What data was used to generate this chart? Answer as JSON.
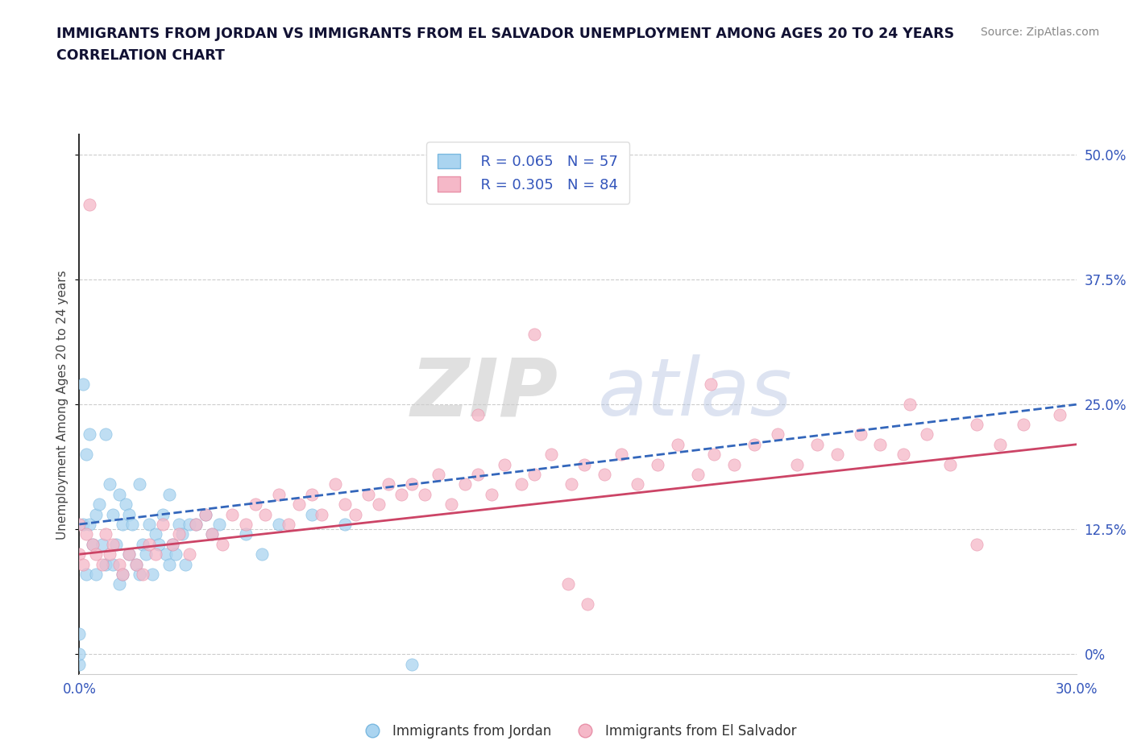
{
  "title_line1": "IMMIGRANTS FROM JORDAN VS IMMIGRANTS FROM EL SALVADOR UNEMPLOYMENT AMONG AGES 20 TO 24 YEARS",
  "title_line2": "CORRELATION CHART",
  "source_text": "Source: ZipAtlas.com",
  "ylabel": "Unemployment Among Ages 20 to 24 years",
  "xlim": [
    0.0,
    0.3
  ],
  "ylim": [
    -0.02,
    0.52
  ],
  "ytick_positions": [
    0.0,
    0.125,
    0.25,
    0.375,
    0.5
  ],
  "ytick_labels": [
    "0%",
    "12.5%",
    "25.0%",
    "37.5%",
    "50.0%"
  ],
  "xtick_positions": [
    0.0,
    0.3
  ],
  "xtick_labels": [
    "0.0%",
    "30.0%"
  ],
  "jordan_color_fill": "#aad4f0",
  "jordan_color_edge": "#7ab8e0",
  "salvador_color_fill": "#f5b8c8",
  "salvador_color_edge": "#e890a8",
  "jordan_line_color": "#3366bb",
  "salvador_line_color": "#cc4466",
  "jordan_R": 0.065,
  "jordan_N": 57,
  "salvador_R": 0.305,
  "salvador_N": 84,
  "legend_label_jordan": "Immigrants from Jordan",
  "legend_label_salvador": "Immigrants from El Salvador",
  "watermark_text1": "ZIP",
  "watermark_text2": "atlas",
  "background_color": "#ffffff",
  "grid_color": "#cccccc",
  "title_color": "#111133",
  "tick_label_color": "#3355bb",
  "jordan_scatter_x": [
    0.0,
    0.0,
    0.0,
    0.001,
    0.001,
    0.002,
    0.002,
    0.003,
    0.003,
    0.004,
    0.005,
    0.005,
    0.006,
    0.007,
    0.008,
    0.008,
    0.009,
    0.01,
    0.01,
    0.011,
    0.012,
    0.012,
    0.013,
    0.013,
    0.014,
    0.015,
    0.015,
    0.016,
    0.017,
    0.018,
    0.018,
    0.019,
    0.02,
    0.021,
    0.022,
    0.023,
    0.024,
    0.025,
    0.026,
    0.027,
    0.027,
    0.028,
    0.029,
    0.03,
    0.031,
    0.032,
    0.033,
    0.035,
    0.038,
    0.04,
    0.042,
    0.05,
    0.055,
    0.06,
    0.07,
    0.08,
    0.1
  ],
  "jordan_scatter_y": [
    -0.01,
    0.0,
    0.02,
    0.27,
    0.13,
    0.2,
    0.08,
    0.13,
    0.22,
    0.11,
    0.14,
    0.08,
    0.15,
    0.11,
    0.22,
    0.09,
    0.17,
    0.14,
    0.09,
    0.11,
    0.16,
    0.07,
    0.13,
    0.08,
    0.15,
    0.14,
    0.1,
    0.13,
    0.09,
    0.17,
    0.08,
    0.11,
    0.1,
    0.13,
    0.08,
    0.12,
    0.11,
    0.14,
    0.1,
    0.16,
    0.09,
    0.11,
    0.1,
    0.13,
    0.12,
    0.09,
    0.13,
    0.13,
    0.14,
    0.12,
    0.13,
    0.12,
    0.1,
    0.13,
    0.14,
    0.13,
    -0.01
  ],
  "salvador_scatter_x": [
    0.0,
    0.0,
    0.001,
    0.002,
    0.003,
    0.004,
    0.005,
    0.007,
    0.008,
    0.009,
    0.01,
    0.012,
    0.013,
    0.015,
    0.017,
    0.019,
    0.021,
    0.023,
    0.025,
    0.028,
    0.03,
    0.033,
    0.035,
    0.038,
    0.04,
    0.043,
    0.046,
    0.05,
    0.053,
    0.056,
    0.06,
    0.063,
    0.066,
    0.07,
    0.073,
    0.077,
    0.08,
    0.083,
    0.087,
    0.09,
    0.093,
    0.097,
    0.1,
    0.104,
    0.108,
    0.112,
    0.116,
    0.12,
    0.124,
    0.128,
    0.133,
    0.137,
    0.142,
    0.148,
    0.152,
    0.158,
    0.163,
    0.168,
    0.174,
    0.18,
    0.186,
    0.191,
    0.197,
    0.203,
    0.21,
    0.216,
    0.222,
    0.228,
    0.235,
    0.241,
    0.248,
    0.255,
    0.262,
    0.27,
    0.277,
    0.284,
    0.137,
    0.147,
    0.153,
    0.12,
    0.19,
    0.25,
    0.27,
    0.295
  ],
  "salvador_scatter_y": [
    0.1,
    0.13,
    0.09,
    0.12,
    0.45,
    0.11,
    0.1,
    0.09,
    0.12,
    0.1,
    0.11,
    0.09,
    0.08,
    0.1,
    0.09,
    0.08,
    0.11,
    0.1,
    0.13,
    0.11,
    0.12,
    0.1,
    0.13,
    0.14,
    0.12,
    0.11,
    0.14,
    0.13,
    0.15,
    0.14,
    0.16,
    0.13,
    0.15,
    0.16,
    0.14,
    0.17,
    0.15,
    0.14,
    0.16,
    0.15,
    0.17,
    0.16,
    0.17,
    0.16,
    0.18,
    0.15,
    0.17,
    0.18,
    0.16,
    0.19,
    0.17,
    0.18,
    0.2,
    0.17,
    0.19,
    0.18,
    0.2,
    0.17,
    0.19,
    0.21,
    0.18,
    0.2,
    0.19,
    0.21,
    0.22,
    0.19,
    0.21,
    0.2,
    0.22,
    0.21,
    0.2,
    0.22,
    0.19,
    0.23,
    0.21,
    0.23,
    0.32,
    0.07,
    0.05,
    0.24,
    0.27,
    0.25,
    0.11,
    0.24
  ],
  "jordan_trend_x": [
    0.0,
    0.3
  ],
  "jordan_trend_y": [
    0.13,
    0.25
  ],
  "salvador_trend_x": [
    0.0,
    0.3
  ],
  "salvador_trend_y": [
    0.1,
    0.21
  ]
}
